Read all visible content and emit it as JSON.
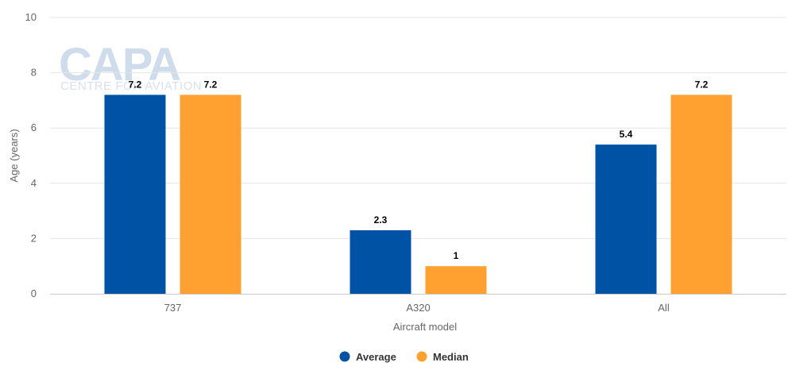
{
  "chart_data": {
    "type": "bar",
    "categories": [
      "737",
      "A320",
      "All"
    ],
    "series": [
      {
        "name": "Average",
        "values": [
          7.2,
          2.3,
          5.4
        ],
        "color": "#0052a5"
      },
      {
        "name": "Median",
        "values": [
          7.2,
          1,
          7.2
        ],
        "color": "#ffa130"
      }
    ],
    "data_labels": [
      [
        "7.2",
        "2.3",
        "5.4"
      ],
      [
        "7.2",
        "1",
        "7.2"
      ]
    ],
    "xlabel": "Aircraft model",
    "ylabel": "Age (years)",
    "ylim": [
      0,
      10
    ],
    "yticks": [
      "0",
      "2",
      "4",
      "6",
      "8",
      "10"
    ],
    "grid": true,
    "legend": "bottom-center"
  },
  "watermark": {
    "logo": "CAPA",
    "tagline": "CENTRE FOR AVIATION"
  }
}
